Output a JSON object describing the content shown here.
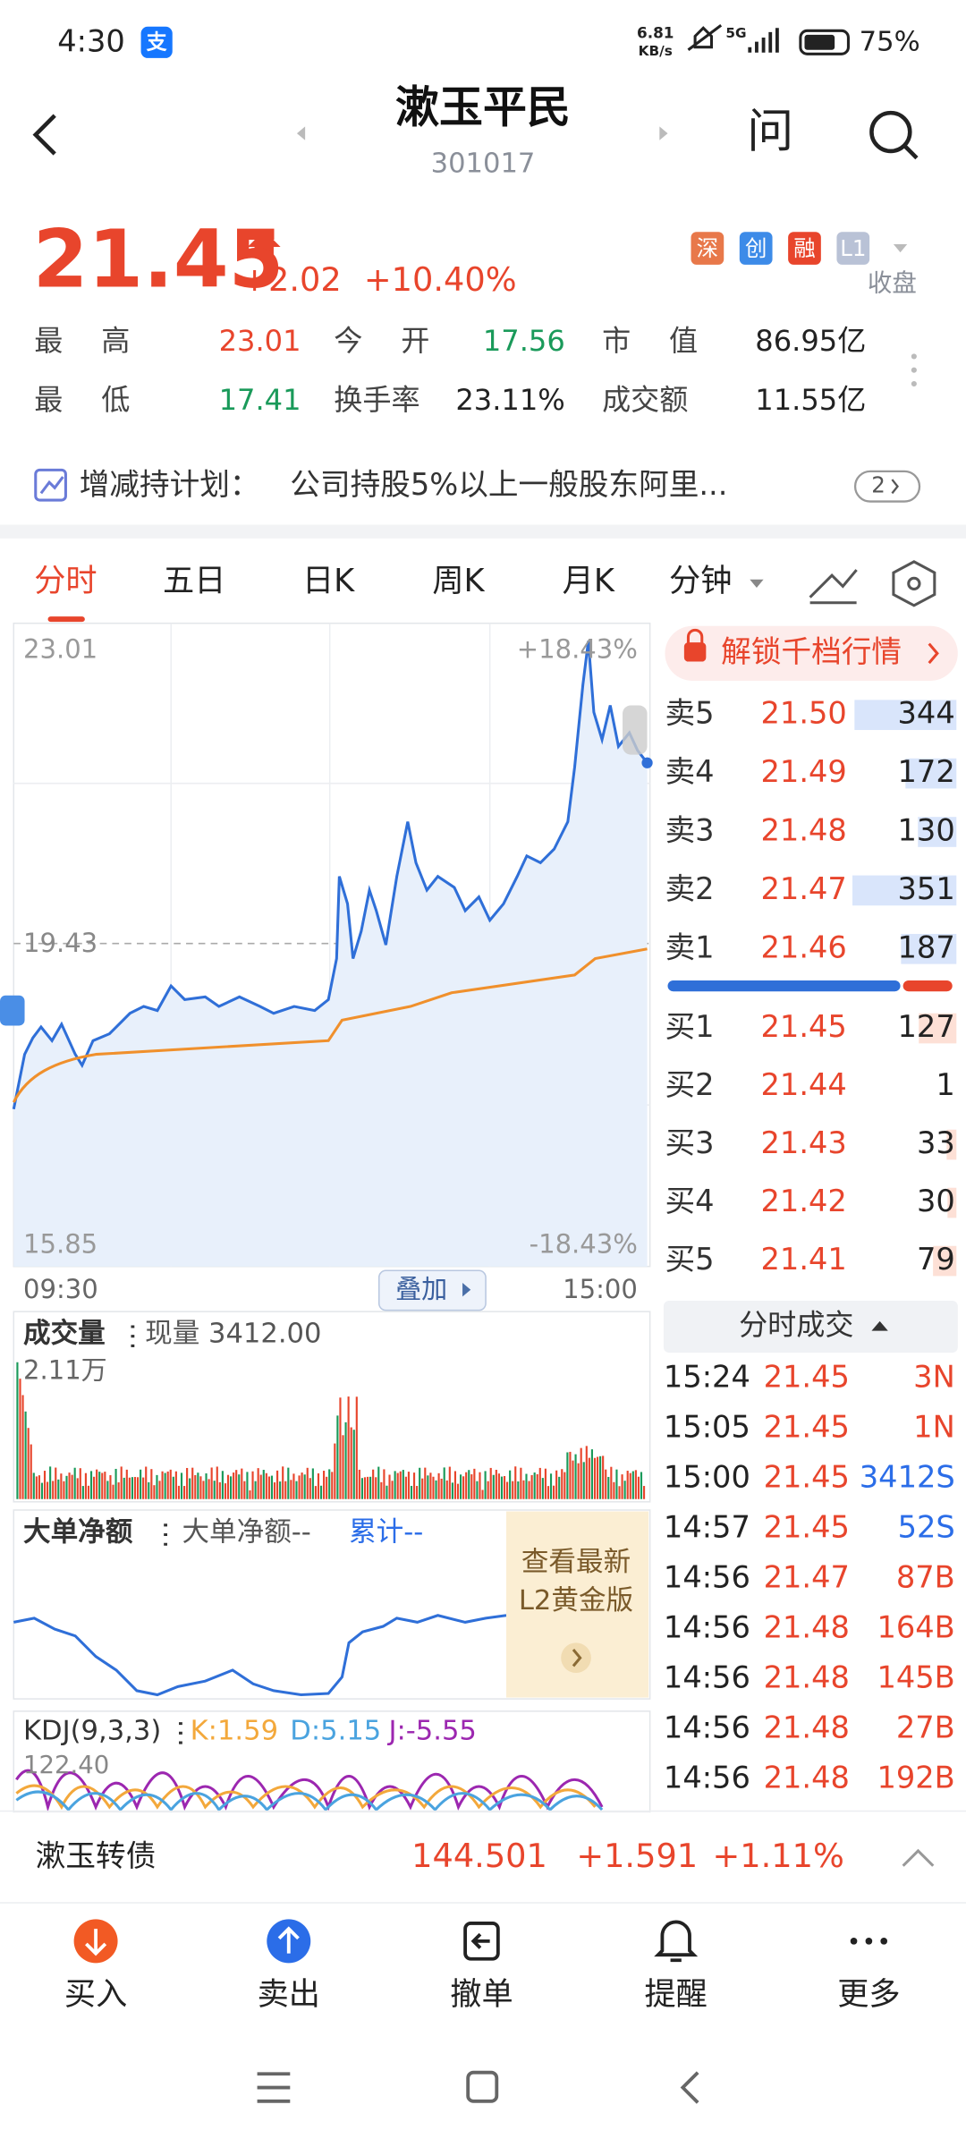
{
  "status_bar": {
    "time": "4:30",
    "app_badge": "支",
    "net_speed": "6.81",
    "net_unit": "KB/s",
    "signal": "5G",
    "battery": "75%"
  },
  "header": {
    "title": "漱玉平民",
    "code": "301017",
    "ask": "问"
  },
  "quote": {
    "price": "21.45",
    "change": "+2.02",
    "change_pct": "+10.40%",
    "tags": [
      "深",
      "创",
      "融",
      "L1"
    ],
    "state": "收盘"
  },
  "stats": {
    "rows": [
      [
        "最高",
        "23.01",
        "今开",
        "17.56",
        "市值",
        "86.95亿"
      ],
      [
        "最低",
        "17.41",
        "换手率",
        "23.11%",
        "成交额",
        "11.55亿"
      ]
    ]
  },
  "notice": {
    "label": "增减持计划：",
    "text": "公司持股5%以上一般股东阿里...",
    "badge": "2"
  },
  "tabs": [
    "分时",
    "五日",
    "日K",
    "周K",
    "月K",
    "分钟"
  ],
  "intraday": {
    "high": "23.01",
    "high_pct": "+18.43%",
    "prev_close": "19.43",
    "low": "15.85",
    "low_pct": "-18.43%",
    "start": "09:30",
    "overlay": "叠加",
    "end": "15:00"
  },
  "volume": {
    "label": "成交量",
    "current": "现量 3412.00",
    "max": "2.11万"
  },
  "big_order": {
    "label": "大单净额",
    "value": "大单净额--",
    "cumulative": "累计--",
    "promo": [
      "查看最新",
      "L2黄金版"
    ]
  },
  "kdj": {
    "label": "KDJ(9,3,3)",
    "k": "K:1.59",
    "d": "D:5.15",
    "j": "J:-5.55",
    "max": "122.40"
  },
  "order_book": {
    "unlock": "解锁千档行情",
    "asks": [
      [
        "卖5",
        "21.50",
        "344"
      ],
      [
        "卖4",
        "21.49",
        "172"
      ],
      [
        "卖3",
        "21.48",
        "130"
      ],
      [
        "卖2",
        "21.47",
        "351"
      ],
      [
        "卖1",
        "21.46",
        "187"
      ]
    ],
    "bids": [
      [
        "买1",
        "21.45",
        "127"
      ],
      [
        "买2",
        "21.44",
        "1"
      ],
      [
        "买3",
        "21.43",
        "33"
      ],
      [
        "买4",
        "21.42",
        "30"
      ],
      [
        "买5",
        "21.41",
        "79"
      ]
    ]
  },
  "trades": {
    "title": "分时成交",
    "rows": [
      [
        "15:24",
        "21.45",
        "3N"
      ],
      [
        "15:05",
        "21.45",
        "1N"
      ],
      [
        "15:00",
        "21.45",
        "3412S"
      ],
      [
        "14:57",
        "21.45",
        "52S"
      ],
      [
        "14:56",
        "21.47",
        "87B"
      ],
      [
        "14:56",
        "21.48",
        "164B"
      ],
      [
        "14:56",
        "21.48",
        "145B"
      ],
      [
        "14:56",
        "21.48",
        "27B"
      ],
      [
        "14:56",
        "21.48",
        "192B"
      ]
    ]
  },
  "bond": {
    "name": "漱玉转债",
    "price": "144.501",
    "change": "+1.591",
    "change_pct": "+1.11%"
  },
  "bottom_nav": [
    "买入",
    "卖出",
    "撤单",
    "提醒",
    "更多"
  ]
}
